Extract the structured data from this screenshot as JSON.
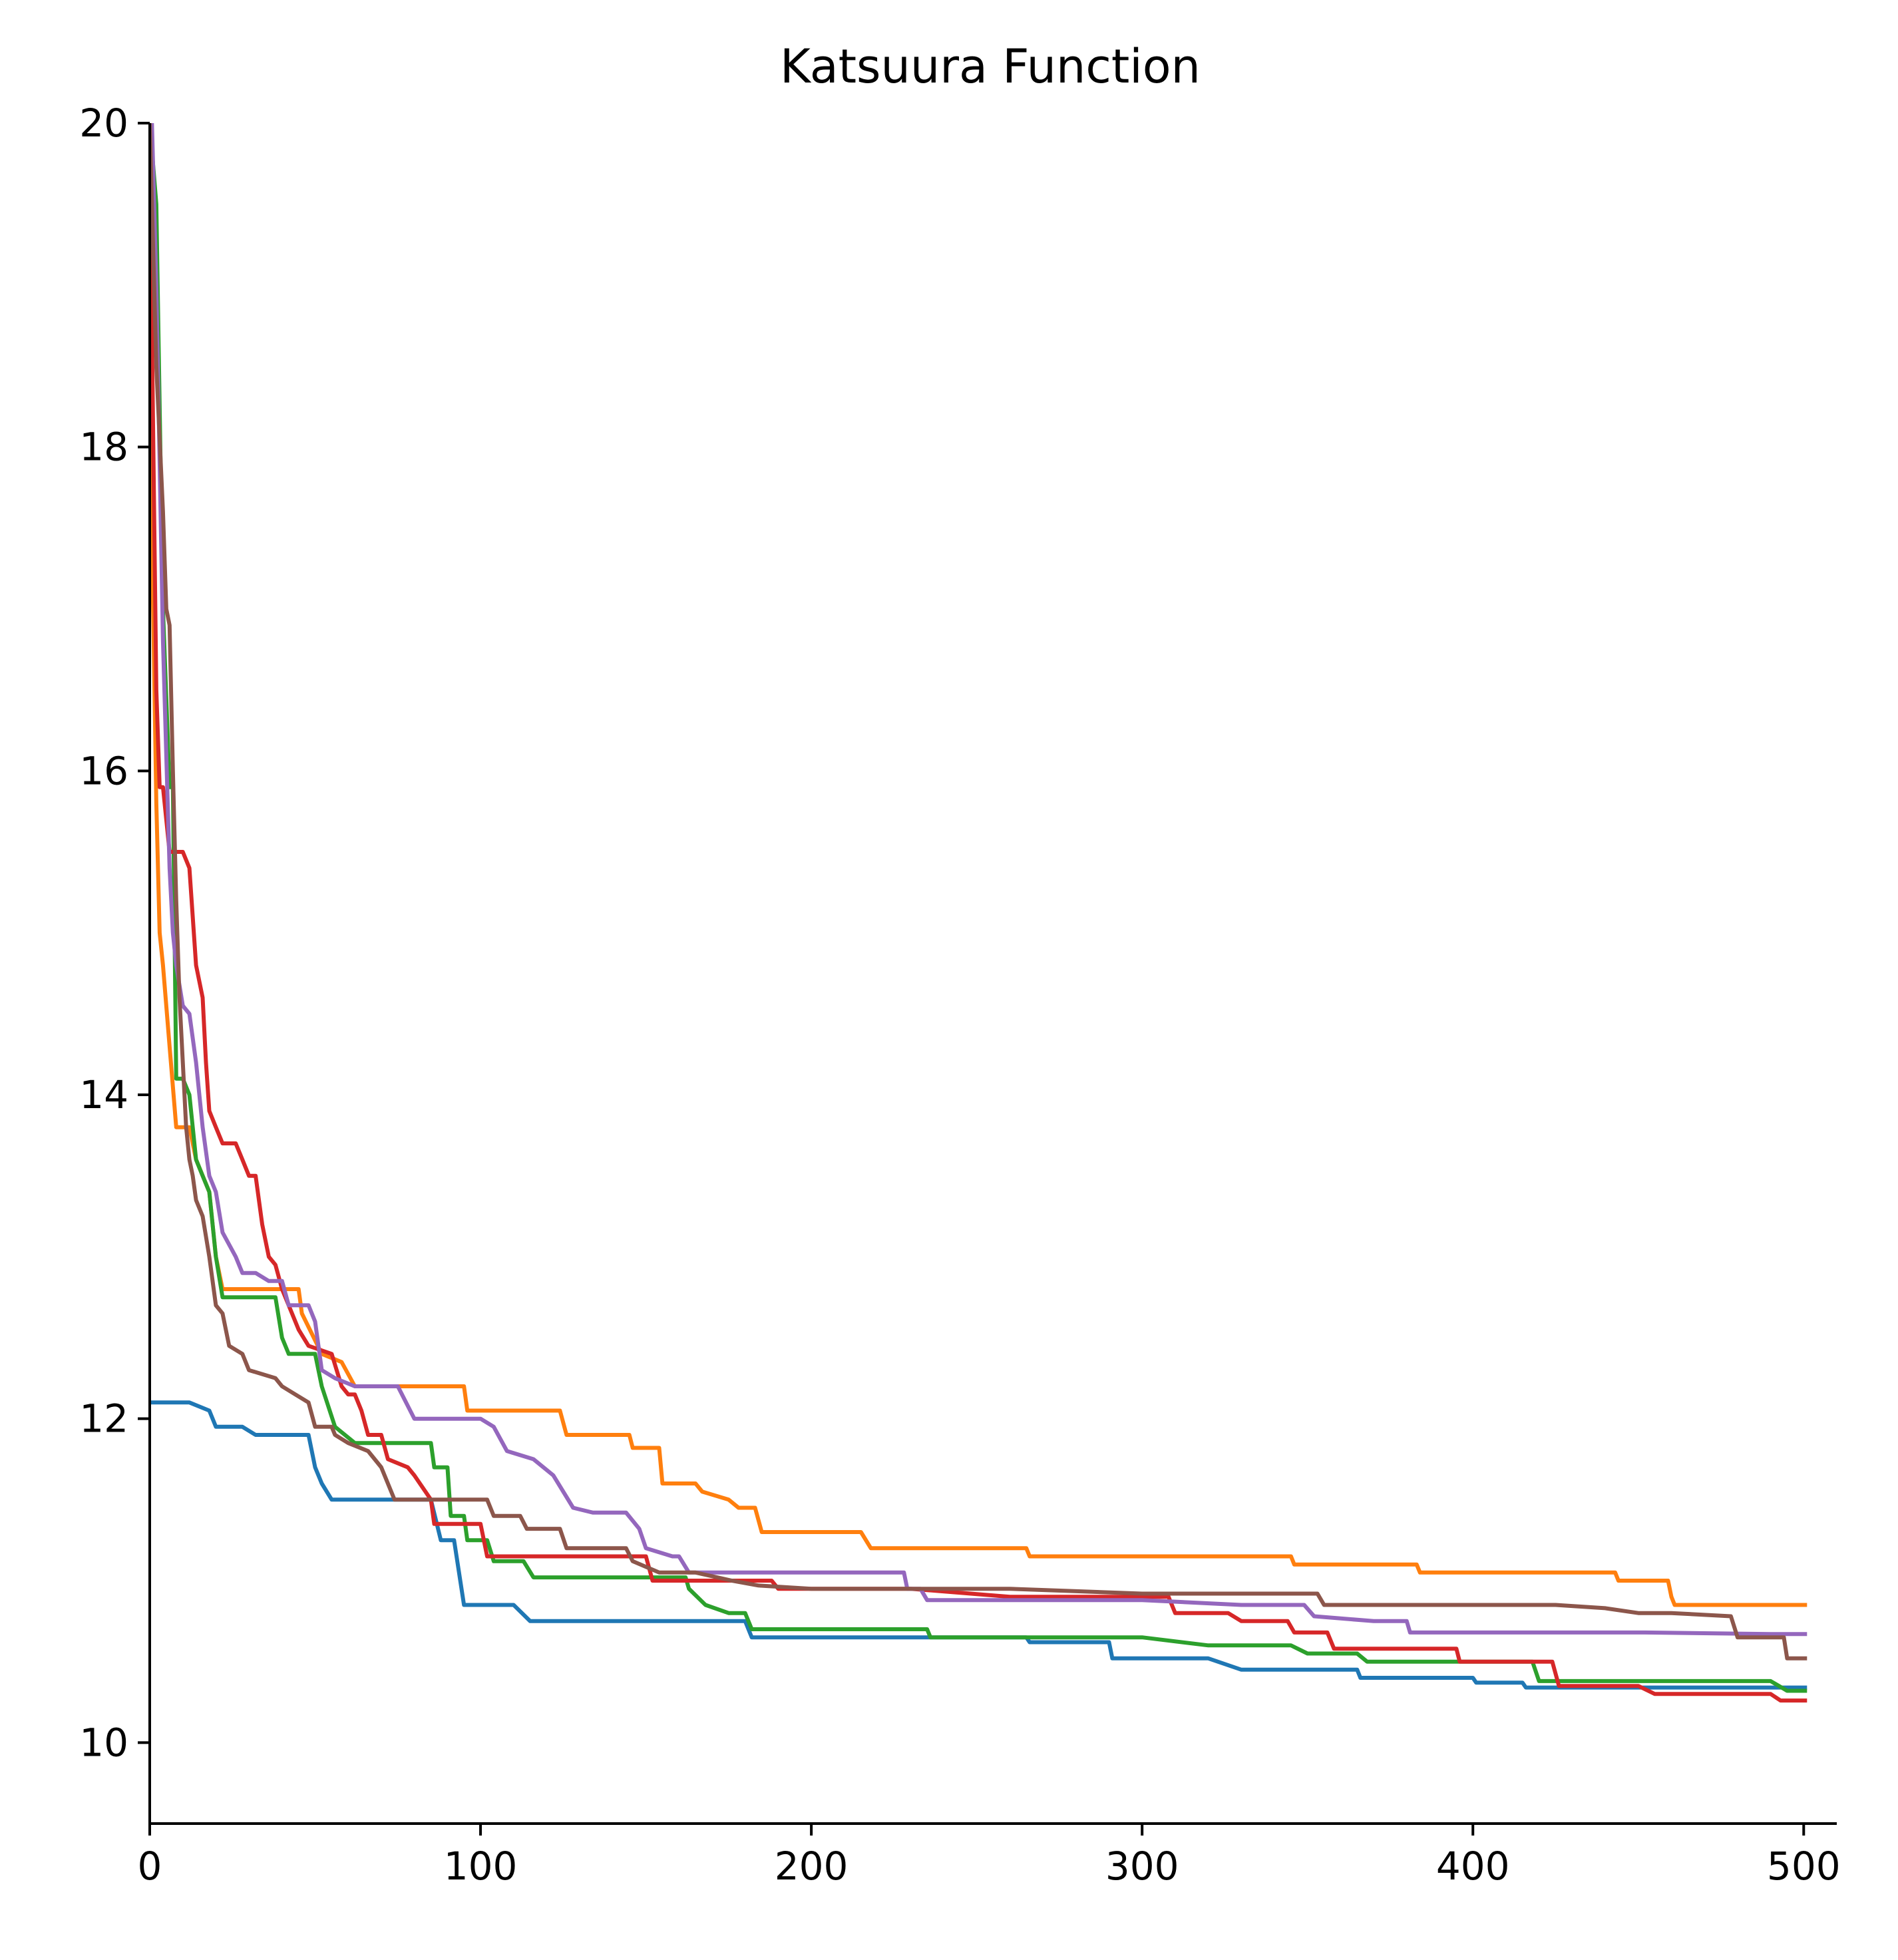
{
  "chart_data": {
    "type": "line",
    "title": "Katsuura Function",
    "xlabel": "",
    "ylabel": "",
    "xlim": [
      0,
      510
    ],
    "ylim": [
      9.5,
      20
    ],
    "x_ticks": [
      0,
      100,
      200,
      300,
      400,
      500
    ],
    "y_ticks": [
      10,
      12,
      14,
      16,
      18,
      20
    ],
    "grid": false,
    "series": [
      {
        "color": "#1f77b4",
        "points": [
          [
            0,
            12.1
          ],
          [
            6,
            12.1
          ],
          [
            12,
            12.1
          ],
          [
            18,
            12.05
          ],
          [
            20,
            11.95
          ],
          [
            28,
            11.95
          ],
          [
            32,
            11.9
          ],
          [
            48,
            11.9
          ],
          [
            50,
            11.7
          ],
          [
            52,
            11.6
          ],
          [
            55,
            11.5
          ],
          [
            75,
            11.5
          ],
          [
            85,
            11.5
          ],
          [
            88,
            11.25
          ],
          [
            92,
            11.25
          ],
          [
            95,
            10.85
          ],
          [
            110,
            10.85
          ],
          [
            115,
            10.75
          ],
          [
            150,
            10.75
          ],
          [
            180,
            10.75
          ],
          [
            182,
            10.65
          ],
          [
            265,
            10.65
          ],
          [
            266,
            10.62
          ],
          [
            290,
            10.62
          ],
          [
            291,
            10.52
          ],
          [
            320,
            10.52
          ],
          [
            330,
            10.45
          ],
          [
            365,
            10.45
          ],
          [
            366,
            10.4
          ],
          [
            400,
            10.4
          ],
          [
            401,
            10.37
          ],
          [
            415,
            10.37
          ],
          [
            416,
            10.34
          ],
          [
            501,
            10.34
          ]
        ]
      },
      {
        "color": "#ff7f0e",
        "points": [
          [
            0,
            18.3
          ],
          [
            2,
            15.8
          ],
          [
            3,
            15.0
          ],
          [
            4,
            14.8
          ],
          [
            6,
            14.3
          ],
          [
            8,
            13.8
          ],
          [
            12,
            13.8
          ],
          [
            14,
            13.6
          ],
          [
            18,
            13.4
          ],
          [
            20,
            13.0
          ],
          [
            22,
            12.8
          ],
          [
            45,
            12.8
          ],
          [
            46,
            12.65
          ],
          [
            52,
            12.4
          ],
          [
            58,
            12.35
          ],
          [
            62,
            12.2
          ],
          [
            95,
            12.2
          ],
          [
            96,
            12.05
          ],
          [
            115,
            12.05
          ],
          [
            124,
            12.05
          ],
          [
            126,
            11.9
          ],
          [
            145,
            11.9
          ],
          [
            146,
            11.82
          ],
          [
            154,
            11.82
          ],
          [
            155,
            11.6
          ],
          [
            165,
            11.6
          ],
          [
            167,
            11.55
          ],
          [
            175,
            11.5
          ],
          [
            178,
            11.45
          ],
          [
            183,
            11.45
          ],
          [
            185,
            11.3
          ],
          [
            200,
            11.3
          ],
          [
            215,
            11.3
          ],
          [
            218,
            11.2
          ],
          [
            265,
            11.2
          ],
          [
            266,
            11.15
          ],
          [
            345,
            11.15
          ],
          [
            346,
            11.1
          ],
          [
            383,
            11.1
          ],
          [
            384,
            11.05
          ],
          [
            400,
            11.05
          ],
          [
            420,
            11.05
          ],
          [
            443,
            11.05
          ],
          [
            444,
            11.0
          ],
          [
            459,
            11.0
          ],
          [
            460,
            10.9
          ],
          [
            461,
            10.85
          ],
          [
            501,
            10.85
          ]
        ]
      },
      {
        "color": "#2ca02c",
        "points": [
          [
            0,
            20
          ],
          [
            2,
            19.5
          ],
          [
            4,
            17.0
          ],
          [
            6,
            15.9
          ],
          [
            7,
            15.9
          ],
          [
            8,
            14.1
          ],
          [
            10,
            14.1
          ],
          [
            12,
            14.0
          ],
          [
            14,
            13.6
          ],
          [
            16,
            13.5
          ],
          [
            18,
            13.4
          ],
          [
            20,
            13.0
          ],
          [
            22,
            12.75
          ],
          [
            38,
            12.75
          ],
          [
            40,
            12.5
          ],
          [
            42,
            12.4
          ],
          [
            50,
            12.4
          ],
          [
            52,
            12.2
          ],
          [
            56,
            11.95
          ],
          [
            62,
            11.85
          ],
          [
            72,
            11.85
          ],
          [
            78,
            11.85
          ],
          [
            85,
            11.85
          ],
          [
            86,
            11.7
          ],
          [
            90,
            11.7
          ],
          [
            91,
            11.4
          ],
          [
            95,
            11.4
          ],
          [
            96,
            11.25
          ],
          [
            102,
            11.25
          ],
          [
            104,
            11.12
          ],
          [
            113,
            11.12
          ],
          [
            116,
            11.02
          ],
          [
            150,
            11.02
          ],
          [
            162,
            11.02
          ],
          [
            163,
            10.95
          ],
          [
            168,
            10.85
          ],
          [
            175,
            10.8
          ],
          [
            180,
            10.8
          ],
          [
            182,
            10.7
          ],
          [
            225,
            10.7
          ],
          [
            235,
            10.7
          ],
          [
            236,
            10.65
          ],
          [
            300,
            10.65
          ],
          [
            320,
            10.6
          ],
          [
            345,
            10.6
          ],
          [
            350,
            10.55
          ],
          [
            365,
            10.55
          ],
          [
            368,
            10.5
          ],
          [
            400,
            10.5
          ],
          [
            418,
            10.5
          ],
          [
            420,
            10.38
          ],
          [
            440,
            10.38
          ],
          [
            490,
            10.38
          ],
          [
            495,
            10.32
          ],
          [
            501,
            10.32
          ]
        ]
      },
      {
        "color": "#d62728",
        "points": [
          [
            0,
            19.8
          ],
          [
            2,
            16.5
          ],
          [
            3,
            15.9
          ],
          [
            4,
            15.9
          ],
          [
            6,
            15.5
          ],
          [
            10,
            15.5
          ],
          [
            12,
            15.4
          ],
          [
            14,
            14.8
          ],
          [
            16,
            14.6
          ],
          [
            17,
            14.2
          ],
          [
            18,
            13.9
          ],
          [
            20,
            13.8
          ],
          [
            22,
            13.7
          ],
          [
            26,
            13.7
          ],
          [
            28,
            13.6
          ],
          [
            30,
            13.5
          ],
          [
            32,
            13.5
          ],
          [
            34,
            13.2
          ],
          [
            36,
            13.0
          ],
          [
            38,
            12.95
          ],
          [
            40,
            12.8
          ],
          [
            42,
            12.7
          ],
          [
            45,
            12.55
          ],
          [
            48,
            12.45
          ],
          [
            55,
            12.4
          ],
          [
            58,
            12.2
          ],
          [
            60,
            12.15
          ],
          [
            62,
            12.15
          ],
          [
            64,
            12.05
          ],
          [
            66,
            11.9
          ],
          [
            70,
            11.9
          ],
          [
            72,
            11.75
          ],
          [
            78,
            11.7
          ],
          [
            80,
            11.65
          ],
          [
            85,
            11.5
          ],
          [
            86,
            11.35
          ],
          [
            100,
            11.35
          ],
          [
            102,
            11.15
          ],
          [
            110,
            11.15
          ],
          [
            140,
            11.15
          ],
          [
            150,
            11.15
          ],
          [
            152,
            11.0
          ],
          [
            188,
            11.0
          ],
          [
            190,
            10.95
          ],
          [
            230,
            10.95
          ],
          [
            260,
            10.9
          ],
          [
            290,
            10.9
          ],
          [
            308,
            10.9
          ],
          [
            310,
            10.8
          ],
          [
            326,
            10.8
          ],
          [
            330,
            10.75
          ],
          [
            344,
            10.75
          ],
          [
            346,
            10.68
          ],
          [
            356,
            10.68
          ],
          [
            358,
            10.58
          ],
          [
            395,
            10.58
          ],
          [
            396,
            10.5
          ],
          [
            410,
            10.5
          ],
          [
            424,
            10.5
          ],
          [
            426,
            10.35
          ],
          [
            450,
            10.35
          ],
          [
            455,
            10.3
          ],
          [
            490,
            10.3
          ],
          [
            493,
            10.26
          ],
          [
            501,
            10.26
          ]
        ]
      },
      {
        "color": "#9467bd",
        "points": [
          [
            0,
            20.5
          ],
          [
            2,
            19.0
          ],
          [
            4,
            16.8
          ],
          [
            6,
            15.4
          ],
          [
            7,
            15.0
          ],
          [
            8,
            14.8
          ],
          [
            10,
            14.55
          ],
          [
            12,
            14.5
          ],
          [
            14,
            14.2
          ],
          [
            16,
            13.8
          ],
          [
            18,
            13.5
          ],
          [
            20,
            13.4
          ],
          [
            22,
            13.15
          ],
          [
            26,
            13.0
          ],
          [
            28,
            12.9
          ],
          [
            32,
            12.9
          ],
          [
            36,
            12.85
          ],
          [
            40,
            12.85
          ],
          [
            42,
            12.7
          ],
          [
            48,
            12.7
          ],
          [
            50,
            12.6
          ],
          [
            52,
            12.3
          ],
          [
            56,
            12.25
          ],
          [
            62,
            12.2
          ],
          [
            70,
            12.2
          ],
          [
            75,
            12.2
          ],
          [
            80,
            12.0
          ],
          [
            90,
            12.0
          ],
          [
            100,
            12.0
          ],
          [
            104,
            11.95
          ],
          [
            108,
            11.8
          ],
          [
            116,
            11.75
          ],
          [
            122,
            11.65
          ],
          [
            128,
            11.45
          ],
          [
            134,
            11.42
          ],
          [
            144,
            11.42
          ],
          [
            148,
            11.32
          ],
          [
            150,
            11.2
          ],
          [
            158,
            11.15
          ],
          [
            160,
            11.15
          ],
          [
            163,
            11.05
          ],
          [
            210,
            11.05
          ],
          [
            228,
            11.05
          ],
          [
            229,
            10.95
          ],
          [
            233,
            10.95
          ],
          [
            235,
            10.88
          ],
          [
            300,
            10.88
          ],
          [
            330,
            10.85
          ],
          [
            349,
            10.85
          ],
          [
            352,
            10.78
          ],
          [
            370,
            10.75
          ],
          [
            380,
            10.75
          ],
          [
            381,
            10.68
          ],
          [
            430,
            10.68
          ],
          [
            452,
            10.68
          ],
          [
            490,
            10.67
          ],
          [
            501,
            10.67
          ]
        ]
      },
      {
        "color": "#8c564b",
        "points": [
          [
            0,
            20
          ],
          [
            2,
            18.5
          ],
          [
            4,
            17.6
          ],
          [
            5,
            17.0
          ],
          [
            6,
            16.9
          ],
          [
            7,
            16.0
          ],
          [
            8,
            15.2
          ],
          [
            9,
            14.6
          ],
          [
            10,
            14.2
          ],
          [
            11,
            13.8
          ],
          [
            12,
            13.6
          ],
          [
            13,
            13.5
          ],
          [
            14,
            13.35
          ],
          [
            16,
            13.25
          ],
          [
            18,
            13.0
          ],
          [
            20,
            12.7
          ],
          [
            22,
            12.65
          ],
          [
            24,
            12.45
          ],
          [
            28,
            12.4
          ],
          [
            30,
            12.3
          ],
          [
            38,
            12.25
          ],
          [
            40,
            12.2
          ],
          [
            44,
            12.15
          ],
          [
            48,
            12.1
          ],
          [
            50,
            11.95
          ],
          [
            55,
            11.95
          ],
          [
            56,
            11.9
          ],
          [
            60,
            11.85
          ],
          [
            66,
            11.8
          ],
          [
            70,
            11.7
          ],
          [
            74,
            11.5
          ],
          [
            78,
            11.5
          ],
          [
            90,
            11.5
          ],
          [
            102,
            11.5
          ],
          [
            104,
            11.4
          ],
          [
            112,
            11.4
          ],
          [
            114,
            11.32
          ],
          [
            124,
            11.32
          ],
          [
            126,
            11.2
          ],
          [
            144,
            11.2
          ],
          [
            146,
            11.12
          ],
          [
            154,
            11.05
          ],
          [
            165,
            11.05
          ],
          [
            176,
            11.0
          ],
          [
            184,
            10.97
          ],
          [
            200,
            10.95
          ],
          [
            230,
            10.95
          ],
          [
            260,
            10.95
          ],
          [
            300,
            10.92
          ],
          [
            340,
            10.92
          ],
          [
            353,
            10.92
          ],
          [
            355,
            10.85
          ],
          [
            400,
            10.85
          ],
          [
            425,
            10.85
          ],
          [
            440,
            10.83
          ],
          [
            450,
            10.8
          ],
          [
            460,
            10.8
          ],
          [
            478,
            10.78
          ],
          [
            480,
            10.65
          ],
          [
            494,
            10.65
          ],
          [
            495,
            10.52
          ],
          [
            501,
            10.52
          ]
        ]
      }
    ]
  }
}
